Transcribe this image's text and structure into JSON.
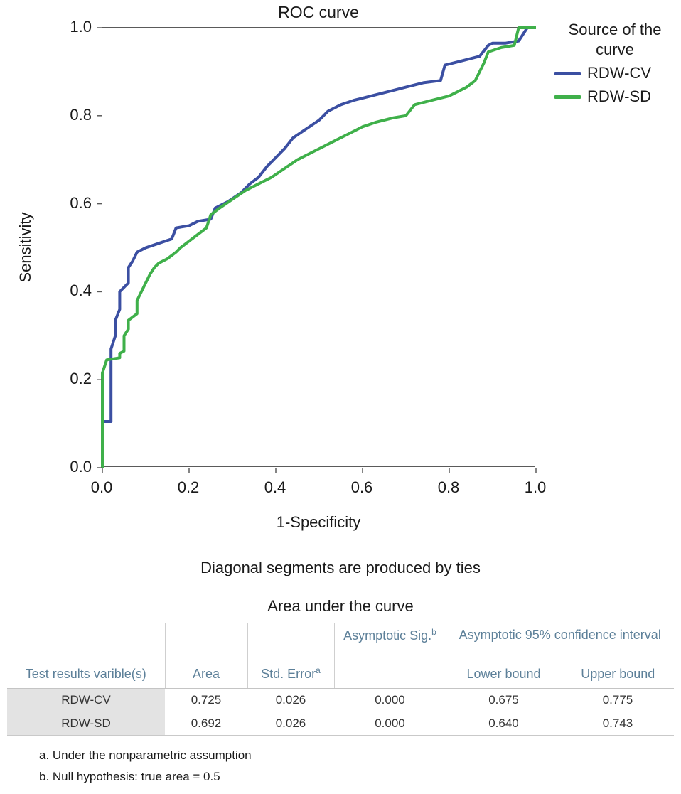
{
  "chart_data": {
    "type": "line",
    "title": "ROC curve",
    "xlabel": "1-Specificity",
    "ylabel": "Sensitivity",
    "xlim": [
      0,
      1
    ],
    "ylim": [
      0,
      1
    ],
    "x_ticks": [
      "0.0",
      "0.2",
      "0.4",
      "0.6",
      "0.8",
      "1.0"
    ],
    "y_ticks": [
      "0.0",
      "0.2",
      "0.4",
      "0.6",
      "0.8",
      "1.0"
    ],
    "legend_title": "Source of the curve",
    "legend_position": "right",
    "grid": false,
    "series": [
      {
        "name": "RDW-CV",
        "color": "#3b4fa2",
        "x": [
          0,
          0,
          0.02,
          0.02,
          0.03,
          0.03,
          0.04,
          0.04,
          0.06,
          0.06,
          0.07,
          0.08,
          0.1,
          0.13,
          0.16,
          0.17,
          0.2,
          0.22,
          0.25,
          0.26,
          0.29,
          0.32,
          0.34,
          0.36,
          0.38,
          0.4,
          0.42,
          0.44,
          0.47,
          0.5,
          0.52,
          0.55,
          0.58,
          0.62,
          0.66,
          0.7,
          0.74,
          0.78,
          0.79,
          0.83,
          0.87,
          0.89,
          0.9,
          0.93,
          0.96,
          0.98,
          1.0
        ],
        "y": [
          0,
          0.105,
          0.105,
          0.27,
          0.3,
          0.335,
          0.36,
          0.4,
          0.42,
          0.455,
          0.47,
          0.49,
          0.5,
          0.51,
          0.52,
          0.545,
          0.55,
          0.56,
          0.565,
          0.59,
          0.605,
          0.625,
          0.645,
          0.66,
          0.685,
          0.705,
          0.725,
          0.75,
          0.77,
          0.79,
          0.81,
          0.825,
          0.835,
          0.845,
          0.855,
          0.865,
          0.875,
          0.88,
          0.915,
          0.925,
          0.935,
          0.96,
          0.965,
          0.965,
          0.97,
          1.0,
          1.0
        ]
      },
      {
        "name": "RDW-SD",
        "color": "#3fb04a",
        "x": [
          0,
          0,
          0.01,
          0.04,
          0.04,
          0.05,
          0.05,
          0.06,
          0.06,
          0.08,
          0.08,
          0.09,
          0.1,
          0.11,
          0.12,
          0.13,
          0.15,
          0.17,
          0.18,
          0.2,
          0.22,
          0.24,
          0.25,
          0.27,
          0.3,
          0.33,
          0.36,
          0.39,
          0.42,
          0.45,
          0.48,
          0.51,
          0.54,
          0.57,
          0.6,
          0.63,
          0.67,
          0.7,
          0.72,
          0.76,
          0.8,
          0.84,
          0.86,
          0.88,
          0.89,
          0.92,
          0.95,
          0.96,
          1.0
        ],
        "y": [
          0,
          0.215,
          0.245,
          0.25,
          0.26,
          0.265,
          0.3,
          0.315,
          0.335,
          0.35,
          0.38,
          0.4,
          0.42,
          0.44,
          0.455,
          0.465,
          0.475,
          0.49,
          0.5,
          0.515,
          0.53,
          0.545,
          0.575,
          0.59,
          0.61,
          0.63,
          0.645,
          0.66,
          0.68,
          0.7,
          0.715,
          0.73,
          0.745,
          0.76,
          0.775,
          0.785,
          0.795,
          0.8,
          0.825,
          0.835,
          0.845,
          0.865,
          0.88,
          0.92,
          0.945,
          0.955,
          0.96,
          1.0,
          1.0
        ]
      }
    ]
  },
  "caption": "Diagonal segments are produced by ties",
  "table": {
    "title": "Area under the curve",
    "header": {
      "test": "Test results varible(s)",
      "area": "Area",
      "std_error": {
        "label": "Std. Error",
        "sup": "a"
      },
      "asym_sig": {
        "label": "Asymptotic Sig.",
        "sup": "b"
      },
      "ci": "Asymptotic 95% confidence interval",
      "lower": "Lower bound",
      "upper": "Upper bound"
    },
    "rows": [
      {
        "label": "RDW-CV",
        "area": "0.725",
        "std_error": "0.026",
        "sig": "0.000",
        "lower": "0.675",
        "upper": "0.775"
      },
      {
        "label": "RDW-SD",
        "area": "0.692",
        "std_error": "0.026",
        "sig": "0.000",
        "lower": "0.640",
        "upper": "0.743"
      }
    ]
  },
  "footnotes": [
    "a. Under the nonparametric assumption",
    "b. Null hypothesis: true area = 0.5"
  ]
}
